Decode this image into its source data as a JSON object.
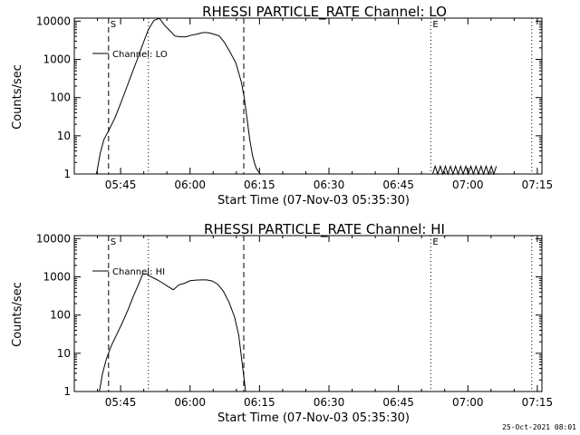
{
  "footer": "25-Oct-2021 08:01",
  "chart_data": [
    {
      "type": "line",
      "title": "RHESSI PARTICLE_RATE Channel: LO",
      "xlabel": "Start Time (07-Nov-03 05:35:30)",
      "ylabel": "Counts/sec",
      "xscale": "linear",
      "yscale": "log",
      "xlim_min": [
        0,
        101
      ],
      "ylim": [
        1,
        12000
      ],
      "x_ticks": [
        10,
        25,
        40,
        55,
        70,
        85,
        100
      ],
      "x_tick_labels": [
        "05:45",
        "06:00",
        "06:15",
        "06:30",
        "06:45",
        "07:00",
        "07:15"
      ],
      "y_ticks": [
        1,
        10,
        100,
        1000,
        10000
      ],
      "y_tick_labels": [
        "1",
        "10",
        "100",
        "1000",
        "10000"
      ],
      "legend": "top-left",
      "series": [
        {
          "name": "Channel: LO",
          "x": [
            4.8,
            5.6,
            6.4,
            7.6,
            8.8,
            10.0,
            11.2,
            12.4,
            13.6,
            14.8,
            16.0,
            17.2,
            18.4,
            19.6,
            20.8,
            21.7,
            22.9,
            24.1,
            25.3,
            26.5,
            27.7,
            28.9,
            30.1,
            31.3,
            32.5,
            33.7,
            34.9,
            36.1,
            36.7,
            37.3,
            37.9,
            38.5,
            38.9,
            39.3,
            39.7,
            40.2
          ],
          "y": [
            1,
            3.5,
            8,
            15,
            30,
            70,
            170,
            420,
            1000,
            2500,
            6000,
            10500,
            11800,
            7500,
            5400,
            4100,
            3900,
            3900,
            4300,
            4600,
            5000,
            5000,
            4600,
            4100,
            2700,
            1500,
            800,
            250,
            100,
            28,
            8,
            3,
            2,
            1.4,
            1.2,
            1
          ]
        }
      ],
      "markers": [
        {
          "label": "S",
          "x": 7.4,
          "style": "dashed"
        },
        {
          "label": "",
          "x": 16.0,
          "style": "dotted"
        },
        {
          "label": "",
          "x": 36.6,
          "style": "dashed"
        },
        {
          "label": "E",
          "x": 77.0,
          "style": "dotted"
        },
        {
          "label": "",
          "x": 98.8,
          "style": "dotted"
        }
      ],
      "noise_segment": {
        "x_start": 77.4,
        "x_end": 91.5,
        "levels": [
          1,
          1.6
        ]
      }
    },
    {
      "type": "line",
      "title": "RHESSI PARTICLE_RATE Channel: HI",
      "xlabel": "Start Time (07-Nov-03 05:35:30)",
      "ylabel": "Counts/sec",
      "xscale": "linear",
      "yscale": "log",
      "xlim_min": [
        0,
        101
      ],
      "ylim": [
        1,
        12000
      ],
      "x_ticks": [
        10,
        25,
        40,
        55,
        70,
        85,
        100
      ],
      "x_tick_labels": [
        "05:45",
        "06:00",
        "06:15",
        "06:30",
        "06:45",
        "07:00",
        "07:15"
      ],
      "y_ticks": [
        1,
        10,
        100,
        1000,
        10000
      ],
      "y_tick_labels": [
        "1",
        "10",
        "100",
        "1000",
        "10000"
      ],
      "legend": "top-left",
      "series": [
        {
          "name": "Channel: HI",
          "x": [
            5.4,
            6.1,
            6.9,
            7.9,
            9.1,
            10.3,
            11.5,
            12.7,
            13.9,
            14.8,
            15.6,
            16.6,
            17.8,
            19.0,
            20.2,
            21.4,
            22.6,
            23.8,
            25.0,
            26.2,
            27.4,
            28.6,
            29.8,
            31.0,
            32.2,
            33.4,
            34.6,
            35.5,
            36.1,
            36.7,
            37.0
          ],
          "y": [
            1,
            3,
            7,
            15,
            30,
            60,
            130,
            300,
            650,
            1200,
            1200,
            1000,
            850,
            700,
            560,
            460,
            620,
            680,
            790,
            820,
            830,
            830,
            780,
            640,
            420,
            220,
            90,
            30,
            8,
            2,
            1
          ]
        }
      ],
      "markers": [
        {
          "label": "S",
          "x": 7.4,
          "style": "dashed"
        },
        {
          "label": "",
          "x": 16.0,
          "style": "dotted"
        },
        {
          "label": "",
          "x": 36.6,
          "style": "dashed"
        },
        {
          "label": "E",
          "x": 77.0,
          "style": "dotted"
        },
        {
          "label": "",
          "x": 98.8,
          "style": "dotted"
        }
      ]
    }
  ]
}
